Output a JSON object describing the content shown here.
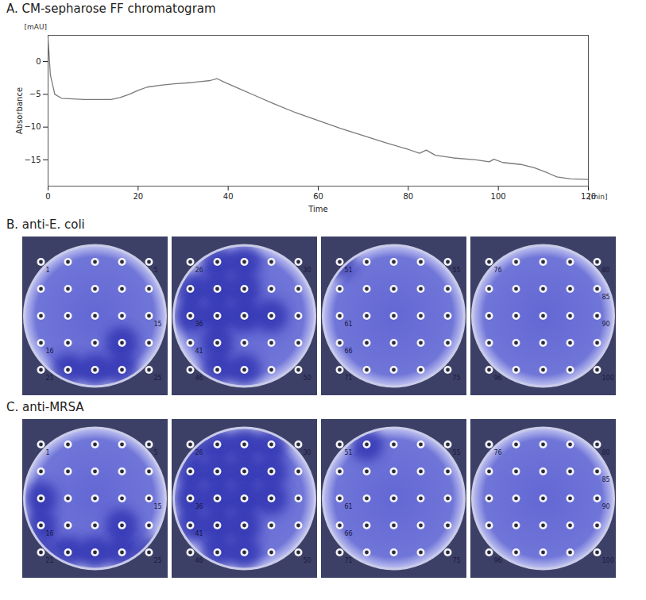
{
  "chart_data": {
    "type": "line",
    "title": "A. CM-sepharose FF chromatogram",
    "x_label": "Time",
    "y_label": "Absorbance",
    "x_unit": "[min]",
    "y_unit": "[mAU]",
    "x": [
      0,
      0.5,
      1.5,
      3,
      8,
      14,
      16,
      18,
      20,
      22,
      25,
      28,
      32,
      36,
      37.5,
      39,
      42,
      46,
      50,
      55,
      60,
      65,
      70,
      75,
      80,
      82.5,
      84,
      86,
      90,
      95,
      98,
      99,
      101,
      105,
      108,
      111,
      113,
      116,
      120
    ],
    "values": [
      3.5,
      -2,
      -5.0,
      -5.6,
      -5.8,
      -5.8,
      -5.5,
      -5.0,
      -4.4,
      -3.9,
      -3.6,
      -3.4,
      -3.2,
      -2.9,
      -2.6,
      -3.1,
      -4.0,
      -5.2,
      -6.4,
      -7.8,
      -9.0,
      -10.2,
      -11.3,
      -12.4,
      -13.4,
      -14.0,
      -13.5,
      -14.3,
      -14.7,
      -15.0,
      -15.3,
      -14.9,
      -15.4,
      -15.7,
      -16.2,
      -17.0,
      -17.6,
      -17.9,
      -18.0
    ],
    "color": "#7a7a7a",
    "xlim": [
      0,
      120
    ],
    "xticks": [
      0,
      20,
      40,
      60,
      80,
      100,
      120
    ],
    "ylim": [
      -19,
      4
    ],
    "yticks": [
      -15,
      -10,
      -5,
      0
    ],
    "grid": false
  },
  "assays": [
    {
      "title": "B. anti-E. coli",
      "plates": [
        {
          "wells": [
            1,
            25
          ],
          "labels": [
            1,
            5,
            15,
            16,
            21,
            25
          ],
          "active_wells": [
            19,
            22,
            23,
            24
          ]
        },
        {
          "wells": [
            26,
            50
          ],
          "labels": [
            26,
            30,
            36,
            41,
            46,
            50
          ],
          "active_wells": [
            27,
            28,
            31,
            32,
            33,
            36,
            37,
            38,
            39,
            42,
            47,
            48
          ]
        },
        {
          "wells": [
            51,
            75
          ],
          "labels": [
            51,
            55,
            61,
            66,
            71,
            75
          ],
          "active_wells": [
            51
          ]
        },
        {
          "wells": [
            76,
            100
          ],
          "labels": [
            76,
            80,
            85,
            90,
            96,
            100
          ],
          "active_wells": []
        }
      ]
    },
    {
      "title": "C. anti-MRSA",
      "plates": [
        {
          "wells": [
            1,
            25
          ],
          "labels": [
            1,
            5,
            15,
            16,
            21,
            25
          ],
          "active_wells": [
            11,
            16,
            19,
            21,
            22,
            23,
            24,
            25
          ]
        },
        {
          "wells": [
            26,
            50
          ],
          "labels": [
            26,
            30,
            36,
            41,
            46,
            50
          ],
          "active_wells": [
            26,
            27,
            28,
            29,
            31,
            32,
            33,
            34,
            36,
            37,
            38,
            39,
            41,
            42,
            43,
            47,
            48
          ]
        },
        {
          "wells": [
            51,
            75
          ],
          "labels": [
            51,
            55,
            61,
            66,
            71,
            75
          ],
          "active_wells": [
            52
          ]
        },
        {
          "wells": [
            76,
            100
          ],
          "labels": [
            76,
            80,
            85,
            90,
            96,
            100
          ],
          "active_wells": []
        }
      ]
    }
  ]
}
